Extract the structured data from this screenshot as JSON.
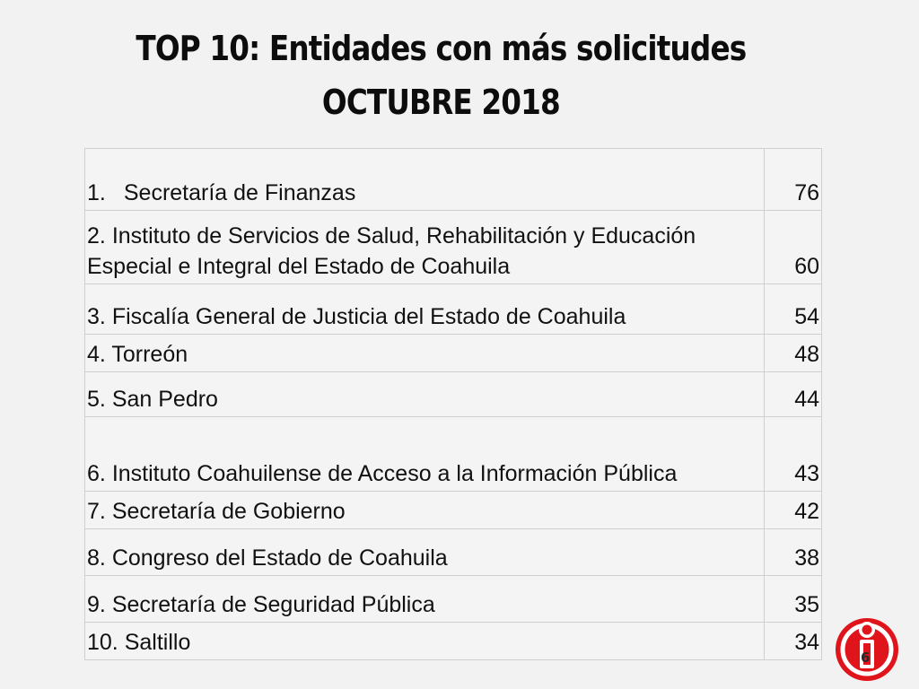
{
  "slide": {
    "title_line1": "TOP 10: Entidades con más solicitudes",
    "title_line2": "OCTUBRE 2018",
    "page_number": "6"
  },
  "table": {
    "rows": [
      {
        "rank": "1.",
        "label": "Secretaría de Finanzas",
        "value": "76"
      },
      {
        "rank": "2.",
        "label": "Instituto de Servicios de Salud, Rehabilitación y Educación Especial e Integral del Estado de Coahuila",
        "value": "60"
      },
      {
        "rank": "3.",
        "label": "Fiscalía General de Justicia del Estado de Coahuila",
        "value": "54"
      },
      {
        "rank": "4.",
        "label": "Torreón",
        "value": "48"
      },
      {
        "rank": "5.",
        "label": "San Pedro",
        "value": "44"
      },
      {
        "rank": "6.",
        "label": "Instituto Coahuilense de Acceso a la Información Pública",
        "value": "43"
      },
      {
        "rank": "7.",
        "label": "Secretaría de Gobierno",
        "value": "42"
      },
      {
        "rank": "8.",
        "label": "Congreso del Estado de Coahuila",
        "value": "38"
      },
      {
        "rank": "9.",
        "label": "Secretaría de Seguridad Pública",
        "value": "35"
      },
      {
        "rank": "10.",
        "label": "Saltillo",
        "value": "34"
      }
    ]
  },
  "colors": {
    "logo_red": "#e0151b",
    "background": "#f2f2f2"
  }
}
